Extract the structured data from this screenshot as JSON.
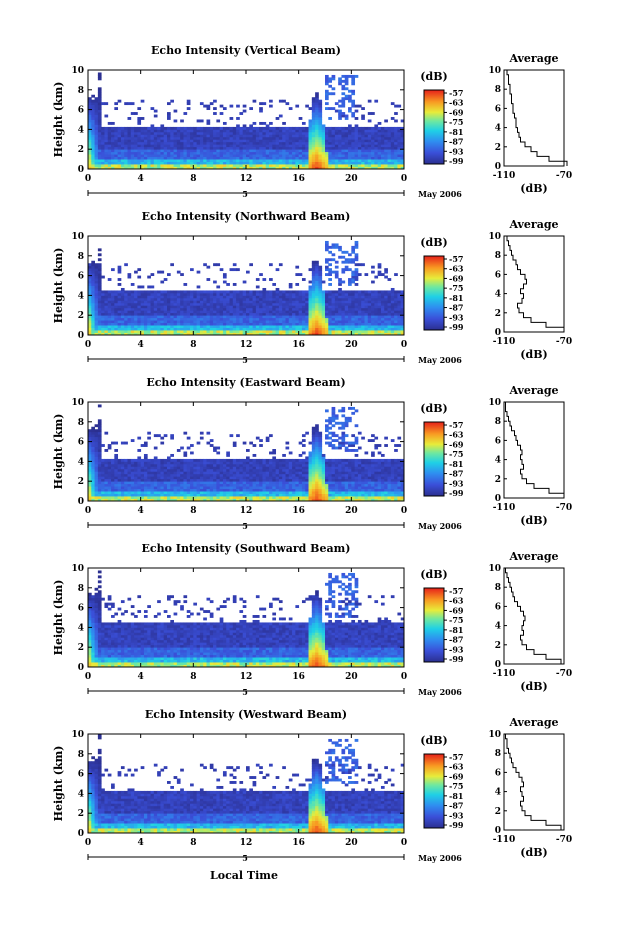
{
  "figure": {
    "ylabel": "Height (km)",
    "xlabel_bottom": "Local Time",
    "day_label": "5",
    "month_label": "May 2006",
    "colorbar_unit": "(dB)",
    "avg_title": "Average",
    "avg_xlabel": "(dB)"
  },
  "chart_data": [
    {
      "type": "heatmap",
      "title": "Echo Intensity (Vertical Beam)",
      "x_ticks": [
        "0",
        "4",
        "8",
        "12",
        "16",
        "20",
        "0"
      ],
      "y_ticks": [
        "0",
        "2",
        "4",
        "6",
        "8",
        "10"
      ],
      "xlim": [
        0,
        24
      ],
      "ylim": [
        0,
        10
      ],
      "colorbar_ticks": [
        "-57",
        "-63",
        "-69",
        "-75",
        "-81",
        "-87",
        "-93",
        "-99"
      ],
      "profile": {
        "title": "Average",
        "x_ticks": [
          "-110",
          "-70"
        ],
        "xlim": [
          -110,
          -70
        ],
        "heights": [
          0,
          0.5,
          1,
          1.5,
          2,
          2.5,
          3,
          3.5,
          4,
          4.5,
          5,
          5.5,
          6,
          6.5,
          7,
          7.5,
          8,
          8.5,
          9,
          9.5
        ],
        "values": [
          -68,
          -80,
          -88,
          -92,
          -96,
          -99,
          -100,
          -101,
          -102,
          -102,
          -103,
          -104,
          -104,
          -105,
          -105,
          -106,
          -106,
          -107,
          -107,
          -108
        ]
      }
    },
    {
      "type": "heatmap",
      "title": "Echo Intensity (Northward Beam)",
      "x_ticks": [
        "0",
        "4",
        "8",
        "12",
        "16",
        "20",
        "0"
      ],
      "y_ticks": [
        "0",
        "2",
        "4",
        "6",
        "8",
        "10"
      ],
      "xlim": [
        0,
        24
      ],
      "ylim": [
        0,
        10
      ],
      "colorbar_ticks": [
        "-57",
        "-63",
        "-69",
        "-75",
        "-81",
        "-87",
        "-93",
        "-99"
      ],
      "profile": {
        "title": "Average",
        "x_ticks": [
          "-110",
          "-70"
        ],
        "xlim": [
          -110,
          -70
        ],
        "heights": [
          0,
          0.5,
          1,
          1.5,
          2,
          2.5,
          3,
          3.5,
          4,
          4.5,
          5,
          5.5,
          6,
          6.5,
          7,
          7.5,
          8,
          8.5,
          9,
          9.5
        ],
        "values": [
          -70,
          -82,
          -92,
          -97,
          -100,
          -101,
          -98,
          -97,
          -99,
          -97,
          -95,
          -96,
          -99,
          -101,
          -102,
          -104,
          -105,
          -106,
          -107,
          -108
        ]
      }
    },
    {
      "type": "heatmap",
      "title": "Echo Intensity (Eastward Beam)",
      "x_ticks": [
        "0",
        "4",
        "8",
        "12",
        "16",
        "20",
        "0"
      ],
      "y_ticks": [
        "0",
        "2",
        "4",
        "6",
        "8",
        "10"
      ],
      "xlim": [
        0,
        24
      ],
      "ylim": [
        0,
        10
      ],
      "colorbar_ticks": [
        "-57",
        "-63",
        "-69",
        "-75",
        "-81",
        "-87",
        "-93",
        "-99"
      ],
      "profile": {
        "title": "Average",
        "x_ticks": [
          "-110",
          "-70"
        ],
        "xlim": [
          -110,
          -70
        ],
        "heights": [
          0,
          0.5,
          1,
          1.5,
          2,
          2.5,
          3,
          3.5,
          4,
          4.5,
          5,
          5.5,
          6,
          6.5,
          7,
          7.5,
          8,
          8.5,
          9,
          9.5
        ],
        "values": [
          -70,
          -80,
          -90,
          -95,
          -98,
          -99,
          -97,
          -98,
          -99,
          -98,
          -99,
          -101,
          -102,
          -103,
          -105,
          -106,
          -107,
          -108,
          -109,
          -109
        ]
      }
    },
    {
      "type": "heatmap",
      "title": "Echo Intensity (Southward Beam)",
      "x_ticks": [
        "0",
        "4",
        "8",
        "12",
        "16",
        "20",
        "0"
      ],
      "y_ticks": [
        "0",
        "2",
        "4",
        "6",
        "8",
        "10"
      ],
      "xlim": [
        0,
        24
      ],
      "ylim": [
        0,
        10
      ],
      "colorbar_ticks": [
        "-57",
        "-63",
        "-69",
        "-75",
        "-81",
        "-87",
        "-93",
        "-99"
      ],
      "profile": {
        "title": "Average",
        "x_ticks": [
          "-110",
          "-70"
        ],
        "xlim": [
          -110,
          -70
        ],
        "heights": [
          0,
          0.5,
          1,
          1.5,
          2,
          2.5,
          3,
          3.5,
          4,
          4.5,
          5,
          5.5,
          6,
          6.5,
          7,
          7.5,
          8,
          8.5,
          9,
          9.5
        ],
        "values": [
          -72,
          -82,
          -90,
          -95,
          -98,
          -99,
          -97,
          -98,
          -97,
          -96,
          -97,
          -99,
          -101,
          -103,
          -104,
          -105,
          -106,
          -107,
          -108,
          -109
        ]
      }
    },
    {
      "type": "heatmap",
      "title": "Echo Intensity (Westward Beam)",
      "x_ticks": [
        "0",
        "4",
        "8",
        "12",
        "16",
        "20",
        "0"
      ],
      "y_ticks": [
        "0",
        "2",
        "4",
        "6",
        "8",
        "10"
      ],
      "xlim": [
        0,
        24
      ],
      "ylim": [
        0,
        10
      ],
      "colorbar_ticks": [
        "-57",
        "-63",
        "-69",
        "-75",
        "-81",
        "-87",
        "-93",
        "-99"
      ],
      "profile": {
        "title": "Average",
        "x_ticks": [
          "-110",
          "-70"
        ],
        "xlim": [
          -110,
          -70
        ],
        "heights": [
          0,
          0.5,
          1,
          1.5,
          2,
          2.5,
          3,
          3.5,
          4,
          4.5,
          5,
          5.5,
          6,
          6.5,
          7,
          7.5,
          8,
          8.5,
          9,
          9.5
        ],
        "values": [
          -72,
          -82,
          -92,
          -96,
          -98,
          -99,
          -97,
          -98,
          -99,
          -97,
          -98,
          -100,
          -102,
          -104,
          -105,
          -106,
          -107,
          -108,
          -108,
          -109
        ]
      }
    }
  ]
}
